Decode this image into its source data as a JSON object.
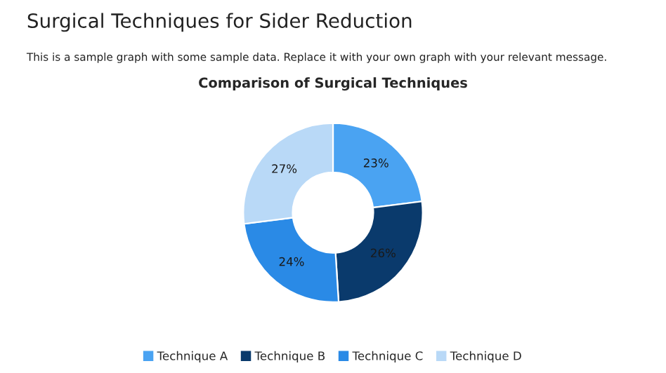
{
  "chart_data": {
    "type": "donut",
    "title": "Comparison of Surgical Techniques",
    "annotations": [
      "Surgical Techniques for Sider Reduction",
      "This is a sample graph with some sample data. Replace it with your own graph with your relevant message."
    ],
    "categories": [
      "Technique A",
      "Technique B",
      "Technique C",
      "Technique D"
    ],
    "values": [
      23,
      26,
      24,
      27
    ],
    "value_labels": [
      "23%",
      "26%",
      "24%",
      "27%"
    ],
    "colors": [
      "#4aa3f2",
      "#0a3a6c",
      "#2a8ae6",
      "#b9d9f7"
    ],
    "legend": "bottom"
  }
}
